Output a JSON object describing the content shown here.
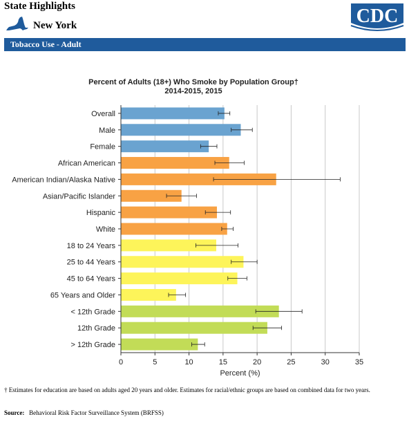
{
  "header": {
    "title": "State Highlights",
    "state": "New York",
    "logo_text": "CDC",
    "topic": "Tobacco Use - Adult"
  },
  "chart_data": {
    "type": "bar",
    "orientation": "horizontal",
    "title": "Percent of Adults (18+) Who Smoke by Population Group†",
    "subtitle": "2014-2015, 2015",
    "xlabel": "Percent (%)",
    "ylabel": "",
    "xlim": [
      0,
      35
    ],
    "xticks": [
      0,
      5,
      10,
      15,
      20,
      25,
      30,
      35
    ],
    "grid": true,
    "legend": "none",
    "categories": [
      "Overall",
      "Male",
      "Female",
      "African American",
      "American Indian/Alaska Native",
      "Asian/Pacific Islander",
      "Hispanic",
      "White",
      "18 to 24 Years",
      "25 to 44 Years",
      "45 to 64 Years",
      "65 Years and Older",
      "< 12th Grade",
      "12th Grade",
      "> 12th Grade"
    ],
    "values": [
      15.2,
      17.6,
      12.9,
      15.9,
      22.8,
      8.9,
      14.1,
      15.6,
      14.0,
      18.0,
      17.1,
      8.1,
      23.2,
      21.5,
      11.3
    ],
    "ci_low": [
      14.3,
      16.2,
      11.7,
      13.8,
      13.6,
      6.7,
      12.4,
      14.8,
      11.0,
      16.2,
      15.7,
      7.0,
      19.8,
      19.4,
      10.4
    ],
    "ci_high": [
      16.0,
      19.3,
      14.1,
      18.1,
      32.2,
      11.1,
      16.1,
      16.5,
      17.2,
      20.0,
      18.5,
      9.5,
      26.6,
      23.6,
      12.3
    ],
    "groups": [
      "overall",
      "sex",
      "sex",
      "race",
      "race",
      "race",
      "race",
      "race",
      "age",
      "age",
      "age",
      "age",
      "education",
      "education",
      "education"
    ],
    "group_colors": {
      "overall": "#6aa3d0",
      "sex": "#6aa3d0",
      "race": "#f8a244",
      "age": "#fdf45a",
      "education": "#c2dc57"
    }
  },
  "footnote": "†  Estimates for education are based on adults aged 20 years and older. Estimates for racial/ethnic groups are based on combined data for two years.",
  "source": {
    "label": "Source:",
    "text": "Behavioral Risk Factor Surveillance System (BRFSS)"
  }
}
